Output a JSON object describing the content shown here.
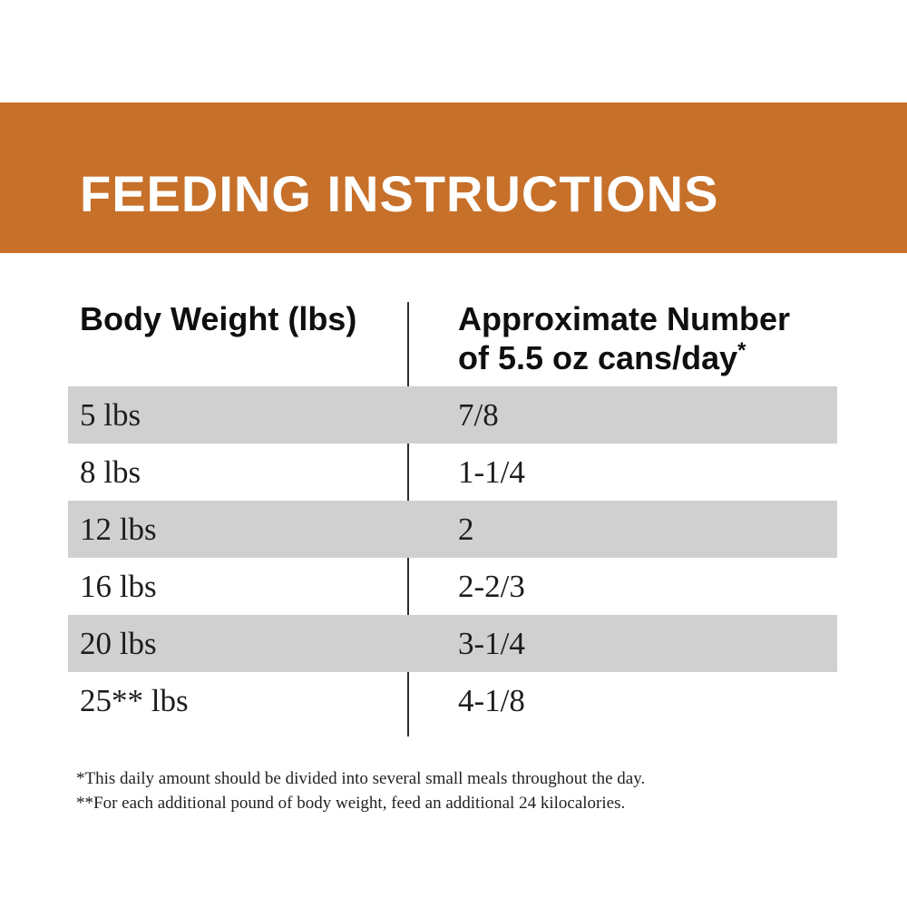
{
  "banner": {
    "title": "FEEDING INSTRUCTIONS"
  },
  "colors": {
    "banner_bg": "#c7702a",
    "banner_text": "#ffffff",
    "row_alt": "#d0d0d0",
    "text": "#1d1d1d",
    "divider": "#2d2d2d"
  },
  "table": {
    "col1_header": "Body Weight (lbs)",
    "col2_header_line1": "Approximate Number",
    "col2_header_line2": "of 5.5 oz cans/day",
    "col2_header_marker": "*",
    "rows": [
      {
        "weight": "5 lbs",
        "cans": "7/8"
      },
      {
        "weight": "8 lbs",
        "cans": "1-1/4"
      },
      {
        "weight": "12 lbs",
        "cans": "2"
      },
      {
        "weight": "16 lbs",
        "cans": "2-2/3"
      },
      {
        "weight": "20 lbs",
        "cans": "3-1/4"
      },
      {
        "weight": "25** lbs",
        "cans": "4-1/8"
      }
    ]
  },
  "footnotes": [
    "*This daily amount should be divided into several small meals throughout the day.",
    "**For each additional pound of body weight, feed an additional 24 kilocalories."
  ]
}
